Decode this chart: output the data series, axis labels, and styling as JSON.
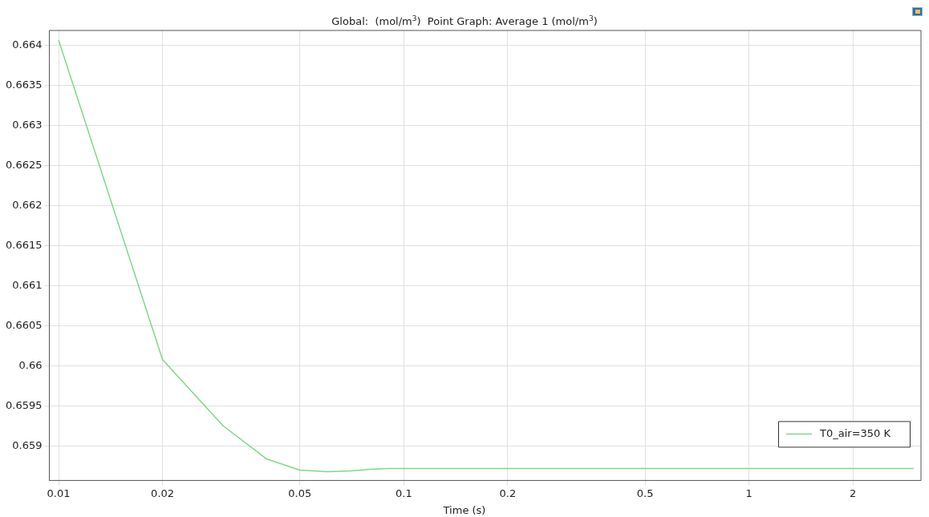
{
  "chart_data": {
    "type": "line",
    "title": "Global:  (mol/m$^{3}$)  Point Graph: Average 1 (mol/m$^{3}$)",
    "xlabel": "Time (s)",
    "log": "x",
    "xlim": [
      0.0094,
      3.15
    ],
    "xticks": [
      0.01,
      0.02,
      0.05,
      0.1,
      0.2,
      0.5,
      1,
      2
    ],
    "ylim": [
      0.65857,
      0.66419
    ],
    "yticks": [
      0.659,
      0.6595,
      0.66,
      0.6605,
      0.661,
      0.6615,
      0.662,
      0.6625,
      0.663,
      0.6635,
      0.664
    ],
    "grid": true,
    "legend": "bottom right",
    "marker": "none",
    "line_style": "solid",
    "series": [
      {
        "name": "T0_air=350 K",
        "color": "#7dd88a",
        "x": [
          0.01,
          0.02,
          0.03,
          0.04,
          0.05,
          0.06,
          0.07,
          0.08,
          0.09,
          0.1,
          0.2,
          0.5,
          1,
          2,
          3
        ],
        "values": [
          0.66407,
          0.66008,
          0.65925,
          0.65884,
          0.6587,
          0.65868,
          0.65869,
          0.65871,
          0.65872,
          0.65872,
          0.65872,
          0.65872,
          0.65872,
          0.65872,
          0.65872
        ]
      }
    ]
  }
}
